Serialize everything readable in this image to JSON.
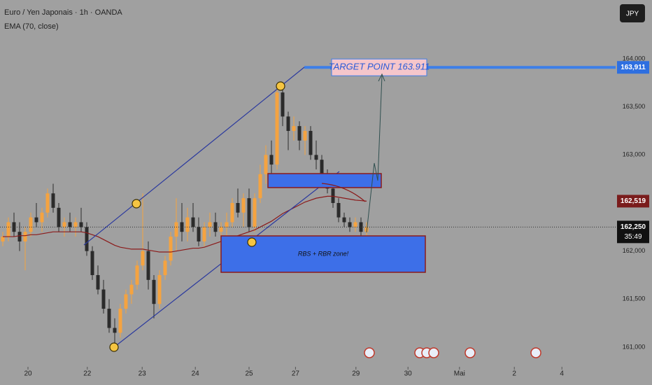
{
  "chart_data": {
    "type": "candlestick",
    "title": "Euro / Yen Japonais · 1h · OANDA",
    "indicator": "EMA (70, close)",
    "currency_button": "JPY",
    "up_color": "#f5a340",
    "down_color": "#2b2b2b",
    "ema_color": "#8b1a1a",
    "candles": [
      [
        162100,
        162200,
        162050,
        162150
      ],
      [
        162150,
        162350,
        162100,
        162300
      ],
      [
        162300,
        162400,
        162150,
        162200
      ],
      [
        162200,
        162300,
        162000,
        162100
      ],
      [
        162100,
        162250,
        161800,
        162200
      ],
      [
        162200,
        162400,
        162150,
        162350
      ],
      [
        162350,
        162500,
        162250,
        162300
      ],
      [
        162300,
        162450,
        162200,
        162400
      ],
      [
        162400,
        162650,
        162350,
        162600
      ],
      [
        162600,
        162700,
        162400,
        162450
      ],
      [
        162450,
        162500,
        162200,
        162250
      ],
      [
        162250,
        162350,
        162150,
        162300
      ],
      [
        162300,
        162400,
        162200,
        162250
      ],
      [
        162250,
        162350,
        162150,
        162300
      ],
      [
        162300,
        162450,
        162200,
        162250
      ],
      [
        162250,
        162300,
        161950,
        162000
      ],
      [
        162000,
        162050,
        161700,
        161750
      ],
      [
        161750,
        161850,
        161550,
        161600
      ],
      [
        161600,
        161700,
        161350,
        161400
      ],
      [
        161400,
        161500,
        161150,
        161200
      ],
      [
        161200,
        161300,
        160980,
        161150
      ],
      [
        161150,
        161450,
        161100,
        161400
      ],
      [
        161400,
        161600,
        161350,
        161550
      ],
      [
        161550,
        161700,
        161450,
        161650
      ],
      [
        161650,
        161900,
        161600,
        161850
      ],
      [
        161850,
        162600,
        161800,
        162000
      ],
      [
        162000,
        162100,
        161600,
        161700
      ],
      [
        161700,
        161750,
        161300,
        161450
      ],
      [
        161450,
        161800,
        161400,
        161750
      ],
      [
        161750,
        161950,
        161700,
        161900
      ],
      [
        161900,
        162200,
        161850,
        162150
      ],
      [
        162150,
        162550,
        162000,
        162300
      ],
      [
        162300,
        162500,
        162100,
        162200
      ],
      [
        162200,
        162450,
        162100,
        162350
      ],
      [
        162350,
        162500,
        162200,
        162250
      ],
      [
        162250,
        162350,
        162050,
        162100
      ],
      [
        162100,
        162300,
        162050,
        162250
      ],
      [
        162250,
        162400,
        162150,
        162300
      ],
      [
        162300,
        162400,
        162150,
        162200
      ],
      [
        162200,
        162300,
        162100,
        162250
      ],
      [
        162250,
        162400,
        162150,
        162300
      ],
      [
        162300,
        162550,
        162250,
        162500
      ],
      [
        162500,
        162650,
        162350,
        162400
      ],
      [
        162400,
        162600,
        162250,
        162550
      ],
      [
        162550,
        162650,
        162200,
        162250
      ],
      [
        162250,
        162600,
        162200,
        162550
      ],
      [
        162550,
        162900,
        162500,
        162800
      ],
      [
        162800,
        163100,
        162700,
        163000
      ],
      [
        163000,
        163150,
        162800,
        162900
      ],
      [
        162900,
        163700,
        162850,
        163650
      ],
      [
        163650,
        163750,
        163300,
        163400
      ],
      [
        163400,
        163450,
        163050,
        163250
      ],
      [
        163250,
        163400,
        163150,
        163300
      ],
      [
        163300,
        163350,
        163050,
        163150
      ],
      [
        163150,
        163300,
        163000,
        163250
      ],
      [
        163250,
        163300,
        162950,
        163000
      ],
      [
        163000,
        163150,
        162850,
        162950
      ],
      [
        162950,
        163000,
        162750,
        162800
      ],
      [
        162800,
        162850,
        162600,
        162650
      ],
      [
        162650,
        162700,
        162450,
        162500
      ],
      [
        162500,
        162550,
        162300,
        162350
      ],
      [
        162350,
        162400,
        162250,
        162300
      ],
      [
        162300,
        162350,
        162200,
        162250
      ],
      [
        162250,
        162350,
        162200,
        162300
      ],
      [
        162300,
        162350,
        162150,
        162200
      ],
      [
        162200,
        162300,
        162150,
        162250
      ]
    ],
    "ema": [
      162150,
      162150,
      162150,
      162160,
      162160,
      162170,
      162170,
      162180,
      162190,
      162200,
      162200,
      162200,
      162200,
      162200,
      162200,
      162190,
      162170,
      162150,
      162120,
      162090,
      162060,
      162040,
      162030,
      162020,
      162020,
      162020,
      162010,
      162000,
      161990,
      161990,
      161990,
      162000,
      162010,
      162020,
      162030,
      162030,
      162040,
      162060,
      162080,
      162100,
      162120,
      162140,
      162160,
      162180,
      162200,
      162220,
      162250,
      162280,
      162310,
      162350,
      162390,
      162420,
      162450,
      162480,
      162510,
      162530,
      162550,
      162560,
      162570,
      162570,
      162560,
      162550,
      162540,
      162530,
      162525,
      162519
    ],
    "xlim": [
      -0.5,
      109.5
    ],
    "xticks": [
      {
        "value": 4.5,
        "label": "20"
      },
      {
        "value": 15.1,
        "label": "22"
      },
      {
        "value": 24.9,
        "label": "23"
      },
      {
        "value": 34.4,
        "label": "24"
      },
      {
        "value": 44,
        "label": "25"
      },
      {
        "value": 52.3,
        "label": "27"
      },
      {
        "value": 63.1,
        "label": "29"
      },
      {
        "value": 72.4,
        "label": "30"
      },
      {
        "value": 81.6,
        "label": "Mai"
      },
      {
        "value": 91.4,
        "label": "2"
      },
      {
        "value": 99.9,
        "label": "4"
      }
    ],
    "ylim": [
      160825,
      164612
    ],
    "yticks": [
      {
        "value": 164000,
        "label": "164,000"
      },
      {
        "value": 163500,
        "label": "163,500"
      },
      {
        "value": 163000,
        "label": "163,000"
      },
      {
        "value": 162000,
        "label": "162,000"
      },
      {
        "value": 161500,
        "label": "161,500"
      },
      {
        "value": 161000,
        "label": "161,000"
      }
    ],
    "target": {
      "value": 163911,
      "label": "163,911",
      "text": "TARGET POINT 163.911"
    },
    "ema_last": {
      "value": 162519,
      "label": "162,519"
    },
    "last_price": {
      "value": 162250,
      "label": "162,250",
      "countdown": "35:49"
    },
    "zone_label": "RBS + RBR zone!"
  }
}
